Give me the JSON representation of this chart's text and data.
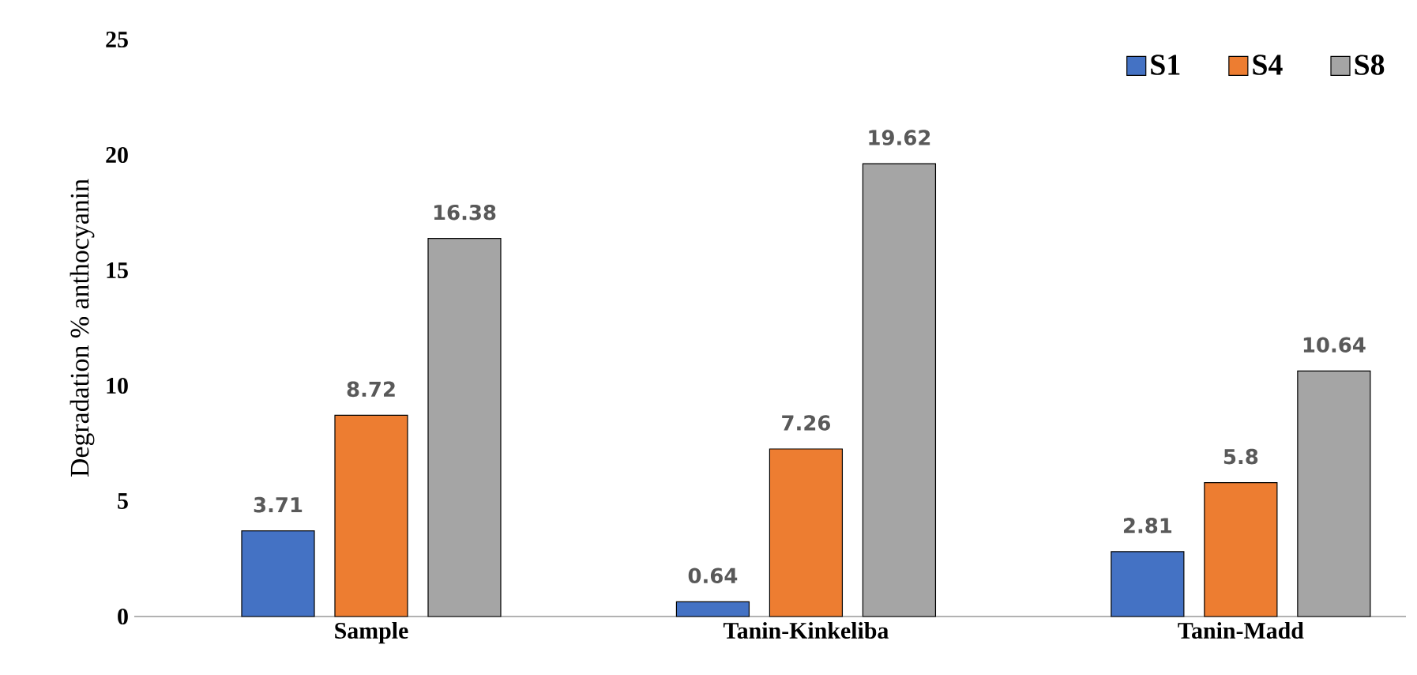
{
  "chart_data": {
    "type": "bar",
    "ylabel": "Degradation % anthocyanin",
    "categories": [
      "Sample",
      "Tanin-Kinkeliba",
      "Tanin-Madd"
    ],
    "series": [
      {
        "name": "S1",
        "color": "#4472c4",
        "values": [
          3.71,
          0.64,
          2.81
        ]
      },
      {
        "name": "S4",
        "color": "#ed7d31",
        "values": [
          8.72,
          7.26,
          5.8
        ]
      },
      {
        "name": "S8",
        "color": "#a5a5a5",
        "values": [
          16.38,
          19.62,
          10.64
        ]
      }
    ],
    "ylim": [
      0,
      25
    ],
    "yticks": [
      0,
      5,
      10,
      15,
      20,
      25
    ],
    "data_labels": true,
    "legend": "top right",
    "grid": false
  }
}
